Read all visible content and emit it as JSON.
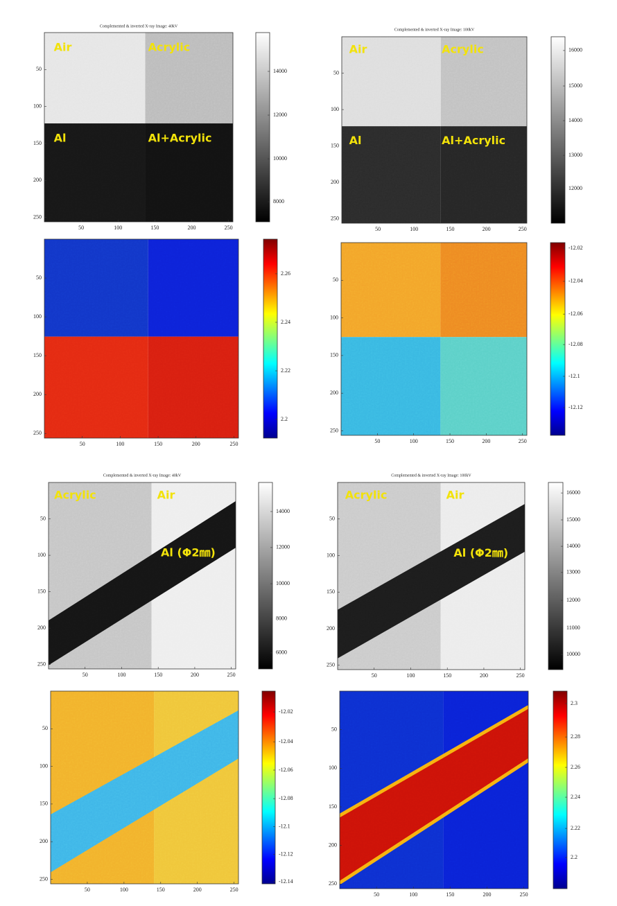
{
  "panels": [
    {
      "title": "Complemented & inverted X-ray Image: 40kV",
      "labels": [
        "Air",
        "Acrylic",
        "Al",
        "Al+Acrylic"
      ],
      "x_ticks": [
        50,
        100,
        150,
        200,
        250
      ],
      "y_ticks": [
        50,
        100,
        150,
        200,
        250
      ],
      "colorbar_ticks": [
        14000,
        12000,
        10000,
        8000
      ]
    },
    {
      "title": "Complemented & inverted X-ray Image: 100kV",
      "labels": [
        "Air",
        "Acrylic",
        "Al",
        "Al+Acrylic"
      ],
      "x_ticks": [
        50,
        100,
        150,
        200,
        250
      ],
      "y_ticks": [
        50,
        100,
        150,
        200,
        250
      ],
      "colorbar_ticks": [
        16000,
        15000,
        14000,
        13000,
        12000
      ]
    },
    {
      "x_ticks": [
        50,
        100,
        150,
        200,
        250
      ],
      "y_ticks": [
        50,
        100,
        150,
        200,
        250
      ],
      "colorbar_ticks": [
        2.26,
        2.24,
        2.22,
        2.2
      ]
    },
    {
      "x_ticks": [
        50,
        100,
        150,
        200,
        250
      ],
      "y_ticks": [
        50,
        100,
        150,
        200,
        250
      ],
      "colorbar_ticks": [
        -12.02,
        -12.04,
        -12.06,
        -12.08,
        -12.1,
        -12.12
      ]
    },
    {
      "title": "Complemented & inverted X-ray Image: 40kV",
      "labels": [
        "Acrylic",
        "Air",
        "Al (Φ2㎜)"
      ],
      "x_ticks": [
        50,
        100,
        150,
        200,
        250
      ],
      "y_ticks": [
        50,
        100,
        150,
        200,
        250
      ],
      "colorbar_ticks": [
        14000,
        12000,
        10000,
        8000,
        6000
      ]
    },
    {
      "title": "Complemented & inverted X-ray Image: 100kV",
      "labels": [
        "Acrylic",
        "Air",
        "Al (Φ2㎜)"
      ],
      "x_ticks": [
        50,
        100,
        150,
        200,
        250
      ],
      "y_ticks": [
        50,
        100,
        150,
        200,
        250
      ],
      "colorbar_ticks": [
        16000,
        15000,
        14000,
        13000,
        12000,
        11000,
        10000
      ]
    },
    {
      "x_ticks": [
        50,
        100,
        150,
        200,
        250
      ],
      "y_ticks": [
        50,
        100,
        150,
        200,
        250
      ],
      "colorbar_ticks": [
        -12.02,
        -12.04,
        -12.06,
        -12.08,
        -12.1,
        -12.12,
        -12.14
      ]
    },
    {
      "x_ticks": [
        50,
        100,
        150,
        200,
        250
      ],
      "y_ticks": [
        50,
        100,
        150,
        200,
        250
      ],
      "colorbar_ticks": [
        2.3,
        2.28,
        2.26,
        2.24,
        2.22,
        2.2
      ]
    }
  ]
}
